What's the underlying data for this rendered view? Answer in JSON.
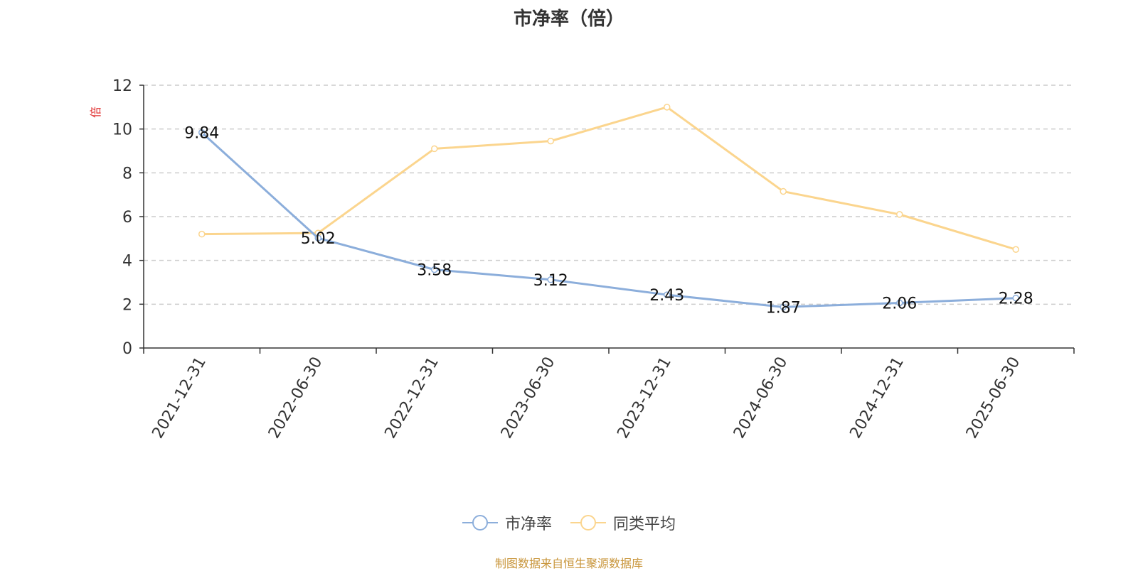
{
  "title": "市净率（倍）",
  "footer": "制图数据来自恒生聚源数据库",
  "ylabel": "倍",
  "colors": {
    "series1": "#8caedb",
    "series2": "#fbd58e",
    "grid": "#cccccc",
    "axis": "#333333",
    "ylabel": "#e03030"
  },
  "chart_data": {
    "type": "line",
    "title": "市净率（倍）",
    "ylabel": "倍",
    "ylim": [
      0,
      12
    ],
    "yticks": [
      0,
      2,
      4,
      6,
      8,
      10,
      12
    ],
    "grid": true,
    "legend_position": "bottom",
    "categories": [
      "2021-12-31",
      "2022-06-30",
      "2022-12-31",
      "2023-06-30",
      "2023-12-31",
      "2024-06-30",
      "2024-12-31",
      "2025-06-30"
    ],
    "series": [
      {
        "name": "市净率",
        "values": [
          9.84,
          5.02,
          3.58,
          3.12,
          2.43,
          1.87,
          2.06,
          2.28
        ],
        "labels_shown": true
      },
      {
        "name": "同类平均",
        "values": [
          5.2,
          5.25,
          9.1,
          9.45,
          11.0,
          7.15,
          6.1,
          4.5
        ],
        "labels_shown": false
      }
    ]
  }
}
